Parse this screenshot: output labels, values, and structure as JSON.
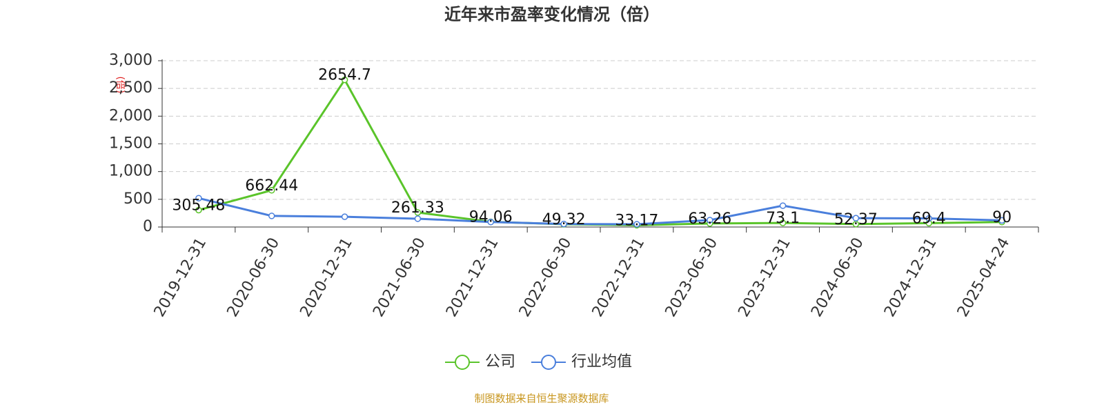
{
  "chart_data": {
    "type": "line",
    "title": "近年来市盈率变化情况（倍）",
    "y_label": "(倍)",
    "source": "制图数据来自恒生聚源数据库",
    "categories": [
      "2019-12-31",
      "2020-06-30",
      "2020-12-31",
      "2021-06-30",
      "2021-12-31",
      "2022-06-30",
      "2022-12-31",
      "2023-06-30",
      "2023-12-31",
      "2024-06-30",
      "2024-12-31",
      "2025-04-24"
    ],
    "series": [
      {
        "name": "公司",
        "color": "#5ac42a",
        "values": [
          305.48,
          662.44,
          2654.7,
          261.33,
          94.06,
          49.32,
          33.17,
          63.26,
          73.1,
          52.37,
          69.4,
          90
        ],
        "show_labels": true
      },
      {
        "name": "行业均值",
        "color": "#4a7fdc",
        "values": [
          520,
          200,
          185,
          150,
          90,
          55,
          50,
          125,
          385,
          160,
          155,
          120
        ]
      }
    ],
    "ylim": [
      0,
      3000
    ],
    "yticks": [
      0,
      500,
      {
        "value": 1000,
        "label": "1,000"
      },
      {
        "value": 1500,
        "label": "1,500"
      },
      {
        "value": 2000,
        "label": "2,000"
      },
      {
        "value": 2500,
        "label": "2,500"
      },
      {
        "value": 3000,
        "label": "3,000"
      }
    ],
    "grid": true
  }
}
